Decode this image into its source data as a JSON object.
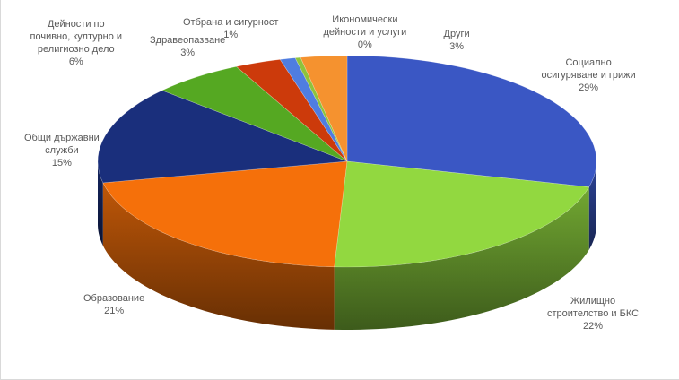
{
  "chart_data": {
    "type": "pie",
    "slices": [
      {
        "label": "Социално осигуряване и грижи",
        "label_lines": [
          "Социално",
          "осигуряване и грижи"
        ],
        "value": 29,
        "value_label": "29%",
        "color": "#3a57c4"
      },
      {
        "label": "Жилищно строителство и БКС",
        "label_lines": [
          "Жилищно",
          "строителство и БКС"
        ],
        "value": 22,
        "value_label": "22%",
        "color": "#92d840"
      },
      {
        "label": "Образование",
        "label_lines": [
          "Образование"
        ],
        "value": 21,
        "value_label": "21%",
        "color": "#f5700a"
      },
      {
        "label": "Общи държавни служби",
        "label_lines": [
          "Общи държавни",
          "служби"
        ],
        "value": 15,
        "value_label": "15%",
        "color": "#1a2f7c"
      },
      {
        "label": "Дейности по почивно, културно и религиозно дело",
        "label_lines": [
          "Дейности по",
          "почивно, културно и",
          "религиозно дело"
        ],
        "value": 6,
        "value_label": "6%",
        "color": "#55a822"
      },
      {
        "label": "Здравеопазване",
        "label_lines": [
          "Здравеопазване"
        ],
        "value": 3,
        "value_label": "3%",
        "color": "#cc3a0b"
      },
      {
        "label": "Отбрана и сигурност",
        "label_lines": [
          "Отбрана и сигурност"
        ],
        "value": 1,
        "value_label": "1%",
        "color": "#4f7de0"
      },
      {
        "label": "Икономически дейности и услуги",
        "label_lines": [
          "Икономически",
          "дейности и услуги"
        ],
        "value": 0,
        "value_label": "0%",
        "color": "#8ec33c"
      },
      {
        "label": "Други",
        "label_lines": [
          "Други"
        ],
        "value": 3,
        "value_label": "3%",
        "color": "#f5922f"
      }
    ],
    "style": "3d-pie",
    "legend": "none",
    "data_labels": "category-and-percent"
  }
}
